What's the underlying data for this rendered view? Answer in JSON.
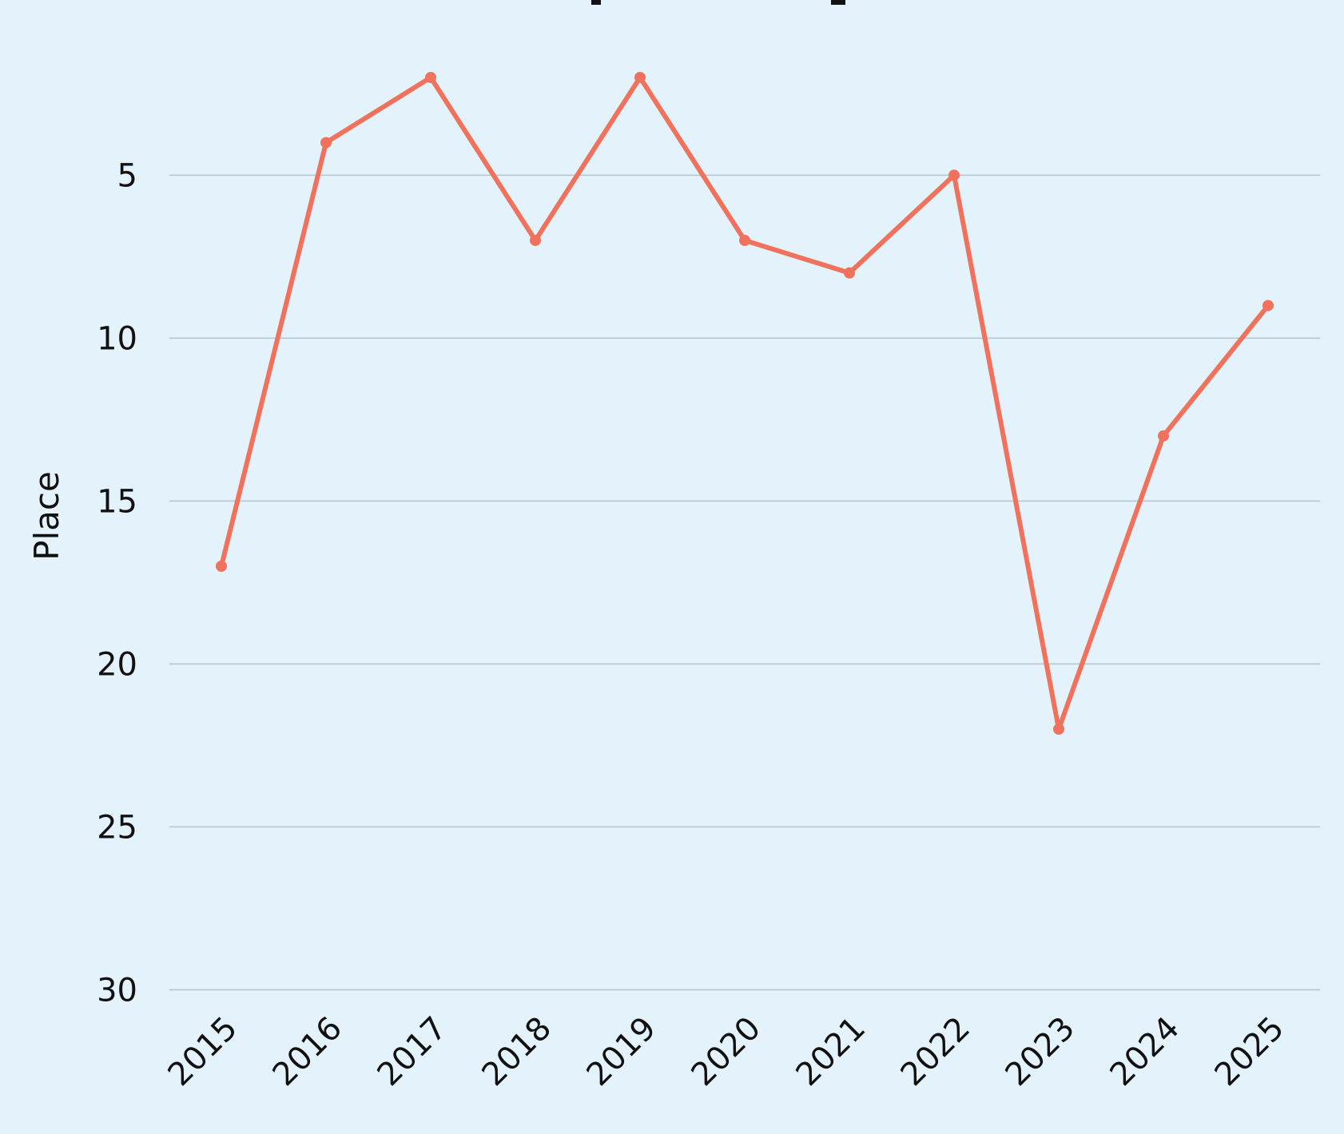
{
  "chart_data": {
    "type": "line",
    "title": "",
    "xlabel": "",
    "ylabel": "Place",
    "y_inverted": true,
    "ylim": [
      30,
      0
    ],
    "yticks": [
      5,
      10,
      15,
      20,
      25,
      30
    ],
    "grid": "horizontal",
    "legend": "none",
    "categories": [
      "2015",
      "2016",
      "2017",
      "2018",
      "2019",
      "2020",
      "2021",
      "2022",
      "2023",
      "2024",
      "2025"
    ],
    "series": [
      {
        "color": "#f0725c",
        "values": [
          17,
          4,
          2,
          7,
          2,
          7,
          8,
          5,
          22,
          13,
          9
        ]
      }
    ],
    "grid_color": "#b3c4cc",
    "background": "#e4f3fb"
  }
}
